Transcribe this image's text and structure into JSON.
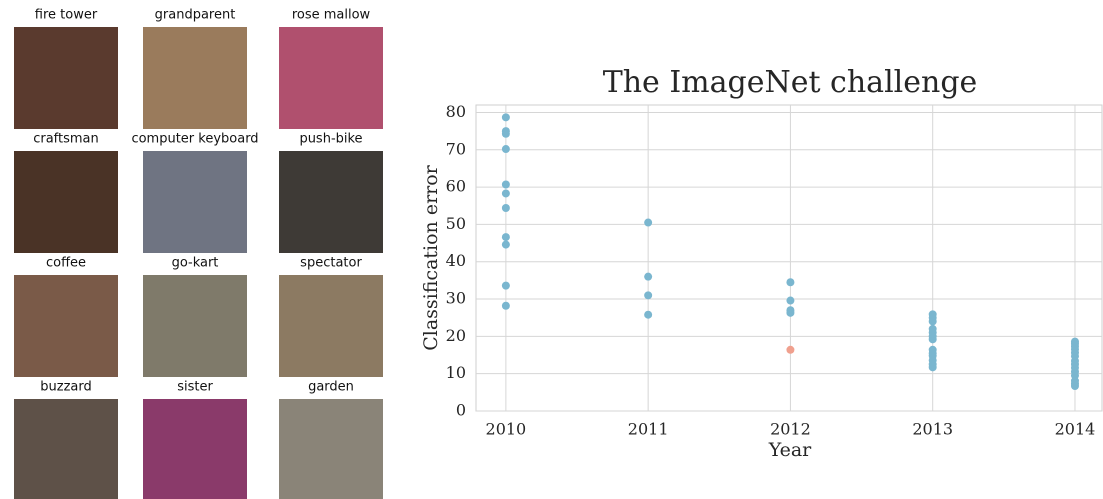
{
  "thumbnails": [
    {
      "label": "fire tower",
      "color": "#5a3a2e"
    },
    {
      "label": "grandparent",
      "color": "#9a7b5c"
    },
    {
      "label": "rose mallow",
      "color": "#b0506e"
    },
    {
      "label": "craftsman",
      "color": "#4a3326"
    },
    {
      "label": "computer keyboard",
      "color": "#6f7482"
    },
    {
      "label": "push-bike",
      "color": "#3e3a36"
    },
    {
      "label": "coffee",
      "color": "#7a5a48"
    },
    {
      "label": "go-kart",
      "color": "#7f7a6a"
    },
    {
      "label": "spectator",
      "color": "#8c7a62"
    },
    {
      "label": "buzzard",
      "color": "#5e5148"
    },
    {
      "label": "sister",
      "color": "#8a3a6a"
    },
    {
      "label": "garden",
      "color": "#8a8478"
    }
  ],
  "chart_data": {
    "type": "scatter",
    "title": "The ImageNet challenge",
    "x_label": "Year",
    "y_label": "Classification error",
    "xlim": [
      2009.79,
      2014.19
    ],
    "ylim": [
      0,
      82
    ],
    "xticks": [
      2010,
      2011,
      2012,
      2013,
      2014
    ],
    "yticks": [
      0,
      10,
      20,
      30,
      40,
      50,
      60,
      70,
      80
    ],
    "grid": true,
    "series": [
      {
        "color": "#7ab6cf",
        "x": [
          2010,
          2010,
          2010,
          2010,
          2010,
          2010,
          2010,
          2010,
          2010,
          2010,
          2010,
          2011,
          2011,
          2011,
          2011,
          2012,
          2012,
          2012,
          2012,
          2013,
          2013,
          2013,
          2013,
          2013,
          2013,
          2013,
          2013,
          2013,
          2013,
          2013,
          2013,
          2013,
          2014,
          2014,
          2014,
          2014,
          2014,
          2014,
          2014,
          2014,
          2014,
          2014,
          2014,
          2014,
          2014,
          2014
        ],
        "values": [
          78.7,
          75.0,
          74.3,
          70.2,
          60.7,
          58.3,
          54.4,
          46.6,
          44.6,
          33.6,
          28.2,
          50.5,
          36.0,
          31.0,
          25.8,
          34.5,
          29.6,
          27.0,
          26.3,
          25.9,
          25.0,
          24.0,
          22.0,
          21.0,
          20.0,
          19.2,
          16.4,
          15.5,
          14.8,
          13.6,
          12.5,
          11.7,
          18.6,
          18.0,
          17.3,
          16.5,
          15.6,
          14.7,
          13.4,
          12.5,
          11.6,
          10.5,
          9.5,
          8.1,
          7.3,
          6.7
        ]
      },
      {
        "color": "#f0a08e",
        "x": [
          2012
        ],
        "values": [
          16.4
        ]
      }
    ]
  }
}
